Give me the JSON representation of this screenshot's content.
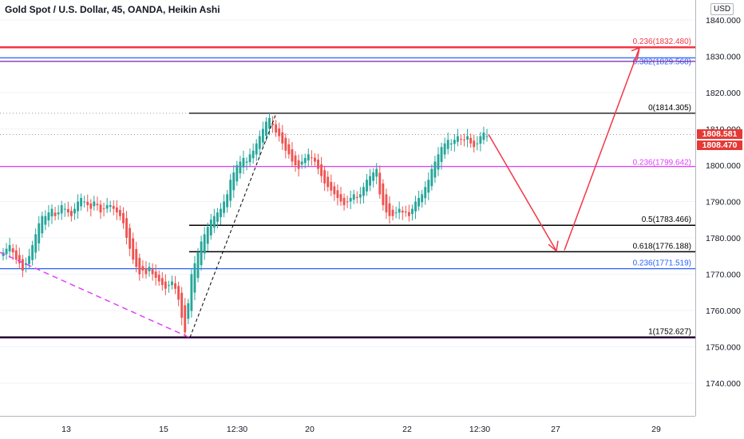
{
  "header": {
    "title": "Gold Spot / U.S. Dollar, 45, OANDA, Heikin Ashi",
    "currency": "USD"
  },
  "price_badges": {
    "upper": "1808.581",
    "lower": "1808.470"
  },
  "colors": {
    "candle_up": "#26a69a",
    "candle_down": "#ef5350",
    "fib_black": "#000000",
    "fib_magenta": "#e040fb",
    "fib_blue": "#2962ff",
    "fib_red": "#f23645",
    "fib_purple": "#7b1fa2",
    "arrow": "#f23645"
  },
  "chart_data": {
    "type": "candlestick",
    "x_tick_labels": [
      "13",
      "15",
      "12:30",
      "20",
      "22",
      "12:30",
      "27",
      "29"
    ],
    "y_ticks": [
      1740,
      1750,
      1760,
      1770,
      1780,
      1790,
      1800,
      1810,
      1820,
      1830,
      1840
    ],
    "y_tick_labels": [
      "1740.000",
      "1750.000",
      "1760.000",
      "1770.000",
      "1780.000",
      "1790.000",
      "1800.000",
      "1810.000",
      "1820.000",
      "1830.000",
      "1840.000"
    ],
    "ylim": [
      1733.0,
      1844.0
    ],
    "last_price": 1808.47,
    "fib_levels": [
      {
        "label": "0(1814.305)",
        "value": 1814.305,
        "color": "#000000"
      },
      {
        "label": "0.236(1799.642)",
        "value": 1799.642,
        "color": "#e040fb"
      },
      {
        "label": "0.5(1783.466)",
        "value": 1783.466,
        "color": "#000000"
      },
      {
        "label": "0.618(1776.188)",
        "value": 1776.188,
        "color": "#000000"
      },
      {
        "label": "1(1752.627)",
        "value": 1752.627,
        "color": "#000000"
      },
      {
        "label": "0.236(1771.519)",
        "value": 1771.519,
        "color": "#2962ff"
      },
      {
        "label": "0.236(1832.480)",
        "value": 1832.48,
        "color": "#f23645"
      },
      {
        "label": "0.382(1829.568)",
        "value": 1829.568,
        "color": "#2962ff"
      }
    ],
    "closes": [
      1776,
      1777,
      1778,
      1776,
      1774,
      1773,
      1771,
      1773,
      1775,
      1778,
      1781,
      1784,
      1786,
      1786,
      1787,
      1788,
      1786,
      1787,
      1789,
      1788,
      1787,
      1786,
      1788,
      1790,
      1791,
      1790,
      1789,
      1788,
      1790,
      1789,
      1787,
      1788,
      1789,
      1789,
      1788,
      1787,
      1786,
      1784,
      1780,
      1777,
      1774,
      1772,
      1770,
      1771,
      1770,
      1772,
      1770,
      1769,
      1768,
      1767,
      1766,
      1767,
      1768,
      1766,
      1763,
      1758,
      1754,
      1762,
      1770,
      1773,
      1776,
      1779,
      1781,
      1783,
      1785,
      1786,
      1787,
      1788,
      1790,
      1792,
      1796,
      1798,
      1800,
      1801,
      1802,
      1801,
      1803,
      1804,
      1806,
      1808,
      1810,
      1812,
      1813,
      1811,
      1809,
      1808,
      1806,
      1804,
      1803,
      1801,
      1800,
      1799,
      1801,
      1802,
      1803,
      1802,
      1801,
      1799,
      1797,
      1795,
      1794,
      1793,
      1792,
      1791,
      1790,
      1789,
      1790,
      1791,
      1792,
      1791,
      1792,
      1794,
      1796,
      1797,
      1798,
      1799,
      1792,
      1789,
      1787,
      1786,
      1786,
      1787,
      1788,
      1787,
      1787,
      1786,
      1788,
      1790,
      1791,
      1792,
      1794,
      1796,
      1799,
      1801,
      1803,
      1805,
      1806,
      1807,
      1806,
      1807,
      1808,
      1807,
      1807,
      1808,
      1806,
      1805,
      1806,
      1808,
      1809,
      1808
    ]
  }
}
